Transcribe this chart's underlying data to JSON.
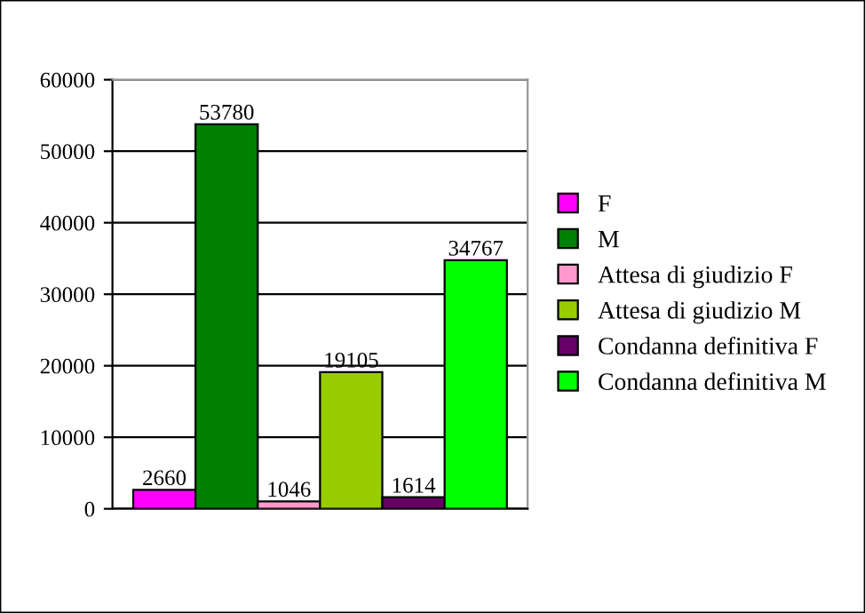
{
  "chart_data": {
    "type": "bar",
    "categories": [
      null
    ],
    "series": [
      {
        "name": "F",
        "color": "#ff00ff",
        "values": [
          2660
        ]
      },
      {
        "name": "M",
        "color": "#008000",
        "values": [
          53780
        ]
      },
      {
        "name": "Attesa di giudizio F",
        "color": "#ff99cc",
        "values": [
          1046
        ]
      },
      {
        "name": "Attesa di giudizio M",
        "color": "#99cc00",
        "values": [
          19105
        ]
      },
      {
        "name": "Condanna definitiva F",
        "color": "#660066",
        "values": [
          1614
        ]
      },
      {
        "name": "Condanna definitiva M",
        "color": "#00ff00",
        "values": [
          34767
        ]
      }
    ],
    "ylim": [
      0,
      60000
    ],
    "yticks": [
      0,
      10000,
      20000,
      30000,
      40000,
      50000,
      60000
    ],
    "grid": "y",
    "legend": "right",
    "data_labels": true
  }
}
